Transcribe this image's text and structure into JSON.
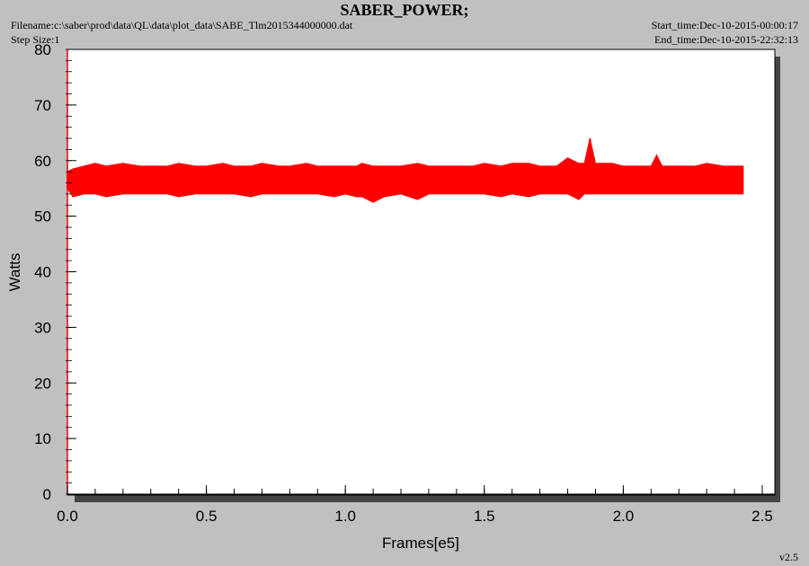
{
  "header": {
    "title": "SABER_POWER;",
    "filename": "Filename:c:\\saber\\prod\\data\\QL\\data\\plot_data\\SABE_Tlm2015344000000.dat",
    "step_size": "Step Size:1",
    "start_time": "Start_time:Dec-10-2015-00:00:17",
    "end_time": "End_time:Dec-10-2015-22:32:13"
  },
  "version": "v2.5",
  "chart_data": {
    "type": "line",
    "title": "SABER_POWER;",
    "xlabel": "Frames[e5]",
    "ylabel": "Watts",
    "xlim": [
      0,
      2.5
    ],
    "ylim": [
      0,
      80
    ],
    "x_ticks": [
      "0.0",
      "0.5",
      "1.0",
      "1.5",
      "2.0",
      "2.5"
    ],
    "y_ticks": [
      "0",
      "10",
      "20",
      "30",
      "40",
      "50",
      "60",
      "70",
      "80"
    ],
    "grid": false,
    "series": [
      {
        "color": "#ff0000",
        "x": [
          0.0,
          0.02,
          0.06,
          0.1,
          0.14,
          0.2,
          0.26,
          0.3,
          0.36,
          0.4,
          0.46,
          0.5,
          0.56,
          0.6,
          0.66,
          0.7,
          0.76,
          0.8,
          0.86,
          0.9,
          0.96,
          1.0,
          1.04,
          1.06,
          1.1,
          1.14,
          1.2,
          1.26,
          1.3,
          1.36,
          1.4,
          1.46,
          1.5,
          1.56,
          1.6,
          1.66,
          1.7,
          1.76,
          1.8,
          1.84,
          1.86,
          1.88,
          1.9,
          1.96,
          2.0,
          2.06,
          2.1,
          2.12,
          2.14,
          2.2,
          2.26,
          2.3,
          2.36,
          2.4,
          2.43
        ],
        "y_max": [
          58,
          58.5,
          59,
          59.5,
          59,
          59.5,
          59,
          59,
          59,
          59.5,
          59,
          59,
          59.5,
          59,
          59,
          59.5,
          59,
          59,
          59.5,
          59,
          59,
          59,
          59,
          59.5,
          59,
          59,
          59,
          59.5,
          59,
          59,
          59,
          59,
          59.5,
          59,
          59.5,
          59.5,
          59,
          59,
          60.5,
          59.5,
          59.5,
          64,
          59.5,
          59.5,
          59,
          59,
          59,
          61,
          59,
          59,
          59,
          59.5,
          59,
          59,
          59
        ],
        "y_min": [
          55,
          53.5,
          54,
          54,
          53.5,
          54,
          54,
          54,
          54,
          53.5,
          54,
          54,
          54,
          54,
          53.5,
          54,
          54,
          54,
          54,
          54,
          53.5,
          54,
          53.5,
          53.5,
          52.5,
          53.5,
          54,
          53,
          54,
          54,
          54,
          54,
          54,
          53.5,
          54,
          53.5,
          54,
          54,
          54,
          53,
          54,
          54,
          54,
          54,
          54,
          54,
          54,
          54,
          54,
          54,
          54,
          54,
          54,
          54,
          54
        ]
      }
    ]
  }
}
